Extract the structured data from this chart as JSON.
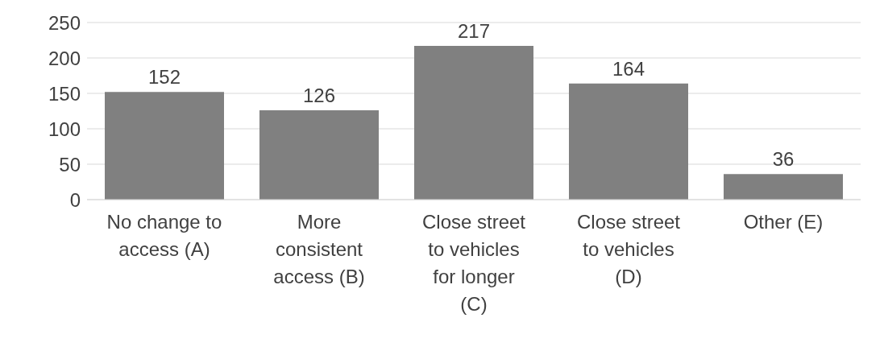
{
  "chart_data": {
    "type": "bar",
    "categories": [
      "No change to access (A)",
      "More consistent access (B)",
      "Close street to vehicles for longer (C)",
      "Close street to vehicles (D)",
      "Other (E)"
    ],
    "values": [
      152,
      126,
      217,
      164,
      36
    ],
    "color": "#808080",
    "ylim": [
      0,
      250
    ],
    "yticks": [
      0,
      50,
      100,
      150,
      200,
      250
    ],
    "grid": "y",
    "data_labels": true
  }
}
